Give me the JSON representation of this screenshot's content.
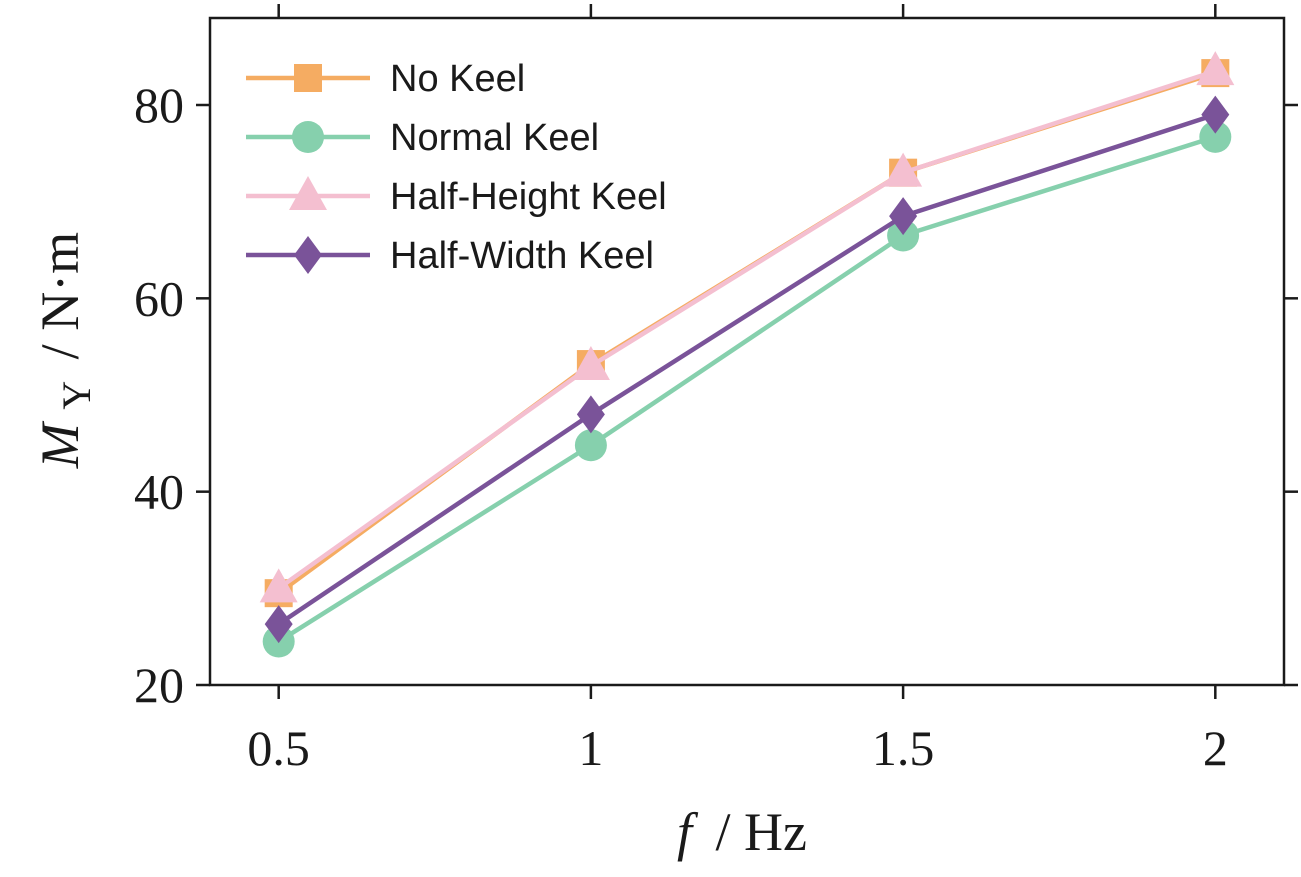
{
  "chart_data": {
    "type": "line",
    "title": "",
    "x": [
      0.5,
      1,
      1.5,
      2
    ],
    "x_tick_labels": [
      "0.5",
      "1",
      "1.5",
      "2"
    ],
    "xlim": [
      0.39,
      2.11
    ],
    "ylim": [
      20,
      89
    ],
    "y_ticks": [
      20,
      40,
      60,
      80
    ],
    "y_tick_labels": [
      "20",
      "40",
      "60",
      "80"
    ],
    "xlabel": {
      "var": "f",
      "unit": "/ Hz"
    },
    "ylabel": {
      "var": "M",
      "sub": "Y",
      "unit": "/ N·m"
    },
    "legend_position": "top-left",
    "grid": false,
    "series": [
      {
        "name": "No Keel",
        "marker": "square",
        "color": "#f5ac62",
        "values": [
          29.5,
          53.2,
          73.0,
          83.3
        ]
      },
      {
        "name": "Normal Keel",
        "marker": "circle",
        "color": "#86d0ad",
        "values": [
          24.5,
          44.8,
          66.5,
          76.7
        ]
      },
      {
        "name": "Half-Height Keel",
        "marker": "triangle",
        "color": "#f4bfd0",
        "values": [
          30.0,
          53.0,
          73.0,
          83.5
        ]
      },
      {
        "name": "Half-Width Keel",
        "marker": "diamond",
        "color": "#7a5399",
        "values": [
          26.3,
          48.0,
          68.5,
          79.0
        ]
      }
    ]
  }
}
